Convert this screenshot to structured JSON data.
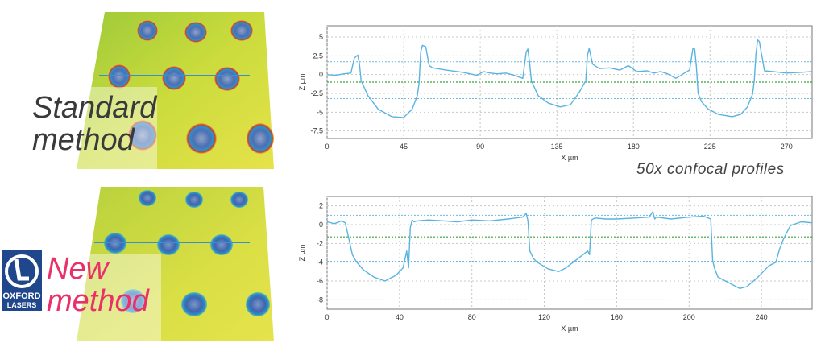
{
  "labels": {
    "standard_line1": "Standard",
    "standard_line2": "method",
    "new_line1": "New",
    "new_line2": "method",
    "caption": "50x confocal profiles"
  },
  "logo": {
    "line1": "OXFORD",
    "line2": "LASERS",
    "color": "#20468b"
  },
  "colors": {
    "profile": "#5ab4e0",
    "reference_green": "#3aa13a",
    "reference_blue": "#6fb8dd",
    "new_label": "#e8306a"
  },
  "chart_data": [
    {
      "type": "line",
      "xlabel": "X µm",
      "ylabel": "Z µm",
      "xlim": [
        0,
        285
      ],
      "ylim": [
        -8.5,
        6.5
      ],
      "xticks": [
        "0",
        "45",
        "90",
        "135",
        "180",
        "225",
        "270"
      ],
      "xtick_values": [
        0,
        45,
        90,
        135,
        180,
        225,
        270
      ],
      "yticks": [
        "5",
        "2.5",
        "0",
        "-2.5",
        "-5",
        "-7.5"
      ],
      "ytick_values": [
        5,
        2.5,
        0,
        -2.5,
        -5,
        -7.5
      ],
      "reference_lines": {
        "green": [
          -1.0
        ],
        "blue": [
          1.7,
          -3.2
        ]
      },
      "series": [
        {
          "x": [
            0,
            5,
            10,
            14,
            16,
            18,
            19,
            20,
            24,
            30,
            38,
            45,
            50,
            53,
            54,
            55,
            56,
            58,
            60,
            62,
            70,
            80,
            88,
            92,
            96,
            100,
            105,
            110,
            115,
            117,
            118,
            119,
            120,
            124,
            130,
            137,
            143,
            148,
            152,
            153,
            154,
            156,
            158,
            160,
            166,
            172,
            177,
            182,
            188,
            192,
            196,
            200,
            205,
            210,
            213,
            215,
            216,
            217,
            218,
            220,
            224,
            230,
            238,
            243,
            247,
            250,
            251,
            252,
            253,
            254,
            257,
            262,
            270,
            278,
            285
          ],
          "y": [
            0,
            -0.1,
            0.1,
            0.2,
            2.2,
            2.6,
            1.5,
            -0.8,
            -2.8,
            -4.6,
            -5.6,
            -5.7,
            -4.6,
            -2.8,
            -1.2,
            3.0,
            3.9,
            3.7,
            1.2,
            0.9,
            0.6,
            0.3,
            -0.1,
            0.4,
            0.2,
            0.1,
            0.2,
            -0.1,
            -0.5,
            3.0,
            3.4,
            1.5,
            -0.8,
            -2.8,
            -3.8,
            -4.3,
            -4.0,
            -2.4,
            -0.8,
            2.6,
            3.5,
            1.4,
            1.1,
            0.8,
            0.9,
            0.6,
            1.2,
            0.4,
            0.5,
            0.2,
            0.4,
            0.1,
            -0.5,
            0.2,
            0.6,
            3.5,
            3.4,
            1.0,
            -2.5,
            -3.6,
            -4.6,
            -5.3,
            -5.6,
            -5.3,
            -4.3,
            -2.6,
            -0.8,
            2.8,
            4.6,
            4.4,
            0.5,
            0.4,
            0.2,
            0.3,
            0.4
          ]
        }
      ]
    },
    {
      "type": "line",
      "xlabel": "X µm",
      "ylabel": "Z µm",
      "xlim": [
        0,
        268
      ],
      "ylim": [
        -9,
        3
      ],
      "xticks": [
        "0",
        "40",
        "80",
        "120",
        "160",
        "200",
        "240"
      ],
      "xtick_values": [
        0,
        40,
        80,
        120,
        160,
        200,
        240
      ],
      "yticks": [
        "2",
        "0",
        "-2",
        "-4",
        "-6",
        "-8"
      ],
      "ytick_values": [
        2,
        0,
        -2,
        -4,
        -6,
        -8
      ],
      "reference_lines": {
        "green": [
          -1.3
        ],
        "blue": [
          1.0,
          -3.9
        ]
      },
      "series": [
        {
          "x": [
            0,
            4,
            8,
            10,
            12,
            14,
            16,
            20,
            26,
            32,
            38,
            42,
            44,
            45,
            46,
            47,
            48,
            50,
            56,
            64,
            72,
            80,
            90,
            100,
            108,
            110,
            111,
            112,
            114,
            116,
            122,
            128,
            132,
            136,
            140,
            144,
            145,
            146,
            148,
            154,
            160,
            170,
            178,
            180,
            181,
            182,
            190,
            200,
            208,
            212,
            213,
            214,
            216,
            222,
            228,
            232,
            238,
            244,
            248,
            250,
            252,
            256,
            262,
            268
          ],
          "y": [
            0.3,
            0.1,
            0.4,
            0.2,
            -1.5,
            -3.2,
            -3.9,
            -4.8,
            -5.6,
            -6.0,
            -5.4,
            -4.6,
            -2.8,
            -4.6,
            -0.3,
            0.5,
            0.3,
            0.4,
            0.5,
            0.4,
            0.3,
            0.5,
            0.4,
            0.6,
            0.8,
            1.2,
            0.4,
            -2.8,
            -3.6,
            -4.0,
            -4.7,
            -5.0,
            -4.6,
            -4.0,
            -3.4,
            -2.8,
            -3.2,
            0.5,
            0.7,
            0.6,
            0.6,
            0.7,
            0.8,
            1.4,
            0.6,
            0.8,
            0.6,
            0.8,
            0.9,
            0.6,
            -3.8,
            -4.6,
            -5.6,
            -6.2,
            -6.8,
            -6.6,
            -5.6,
            -4.4,
            -4.0,
            -2.6,
            -1.6,
            -0.1,
            0.3,
            0.2
          ]
        }
      ]
    }
  ]
}
